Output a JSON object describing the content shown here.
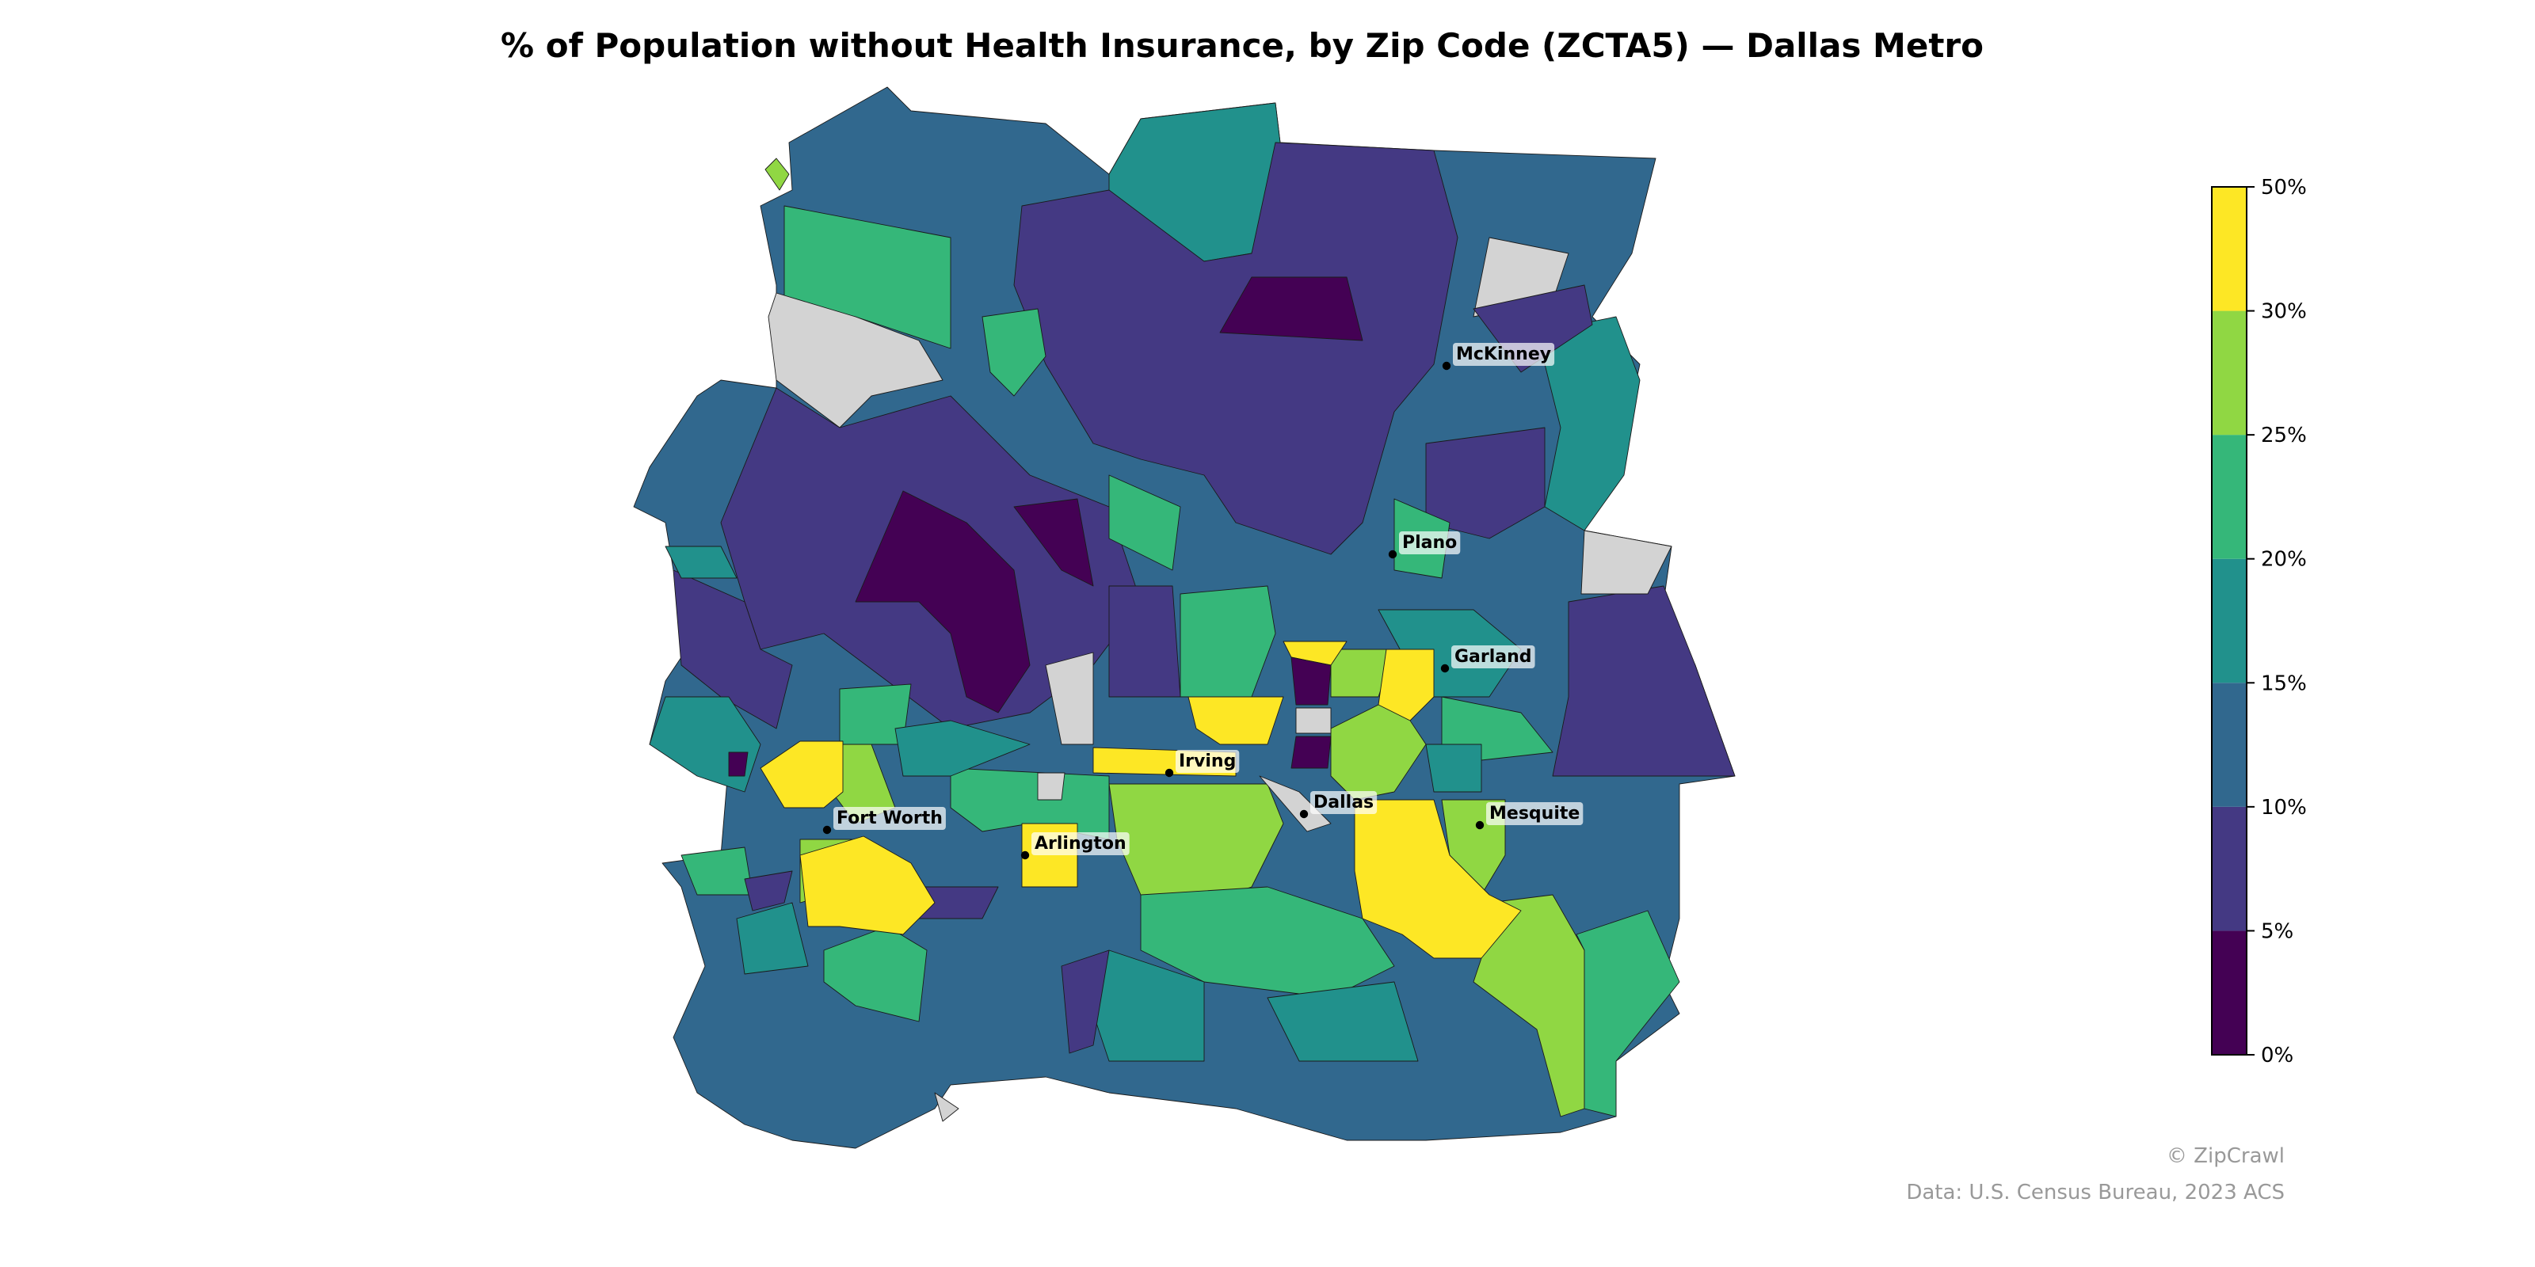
{
  "title": "% of Population without Health Insurance, by Zip Code (ZCTA5) — Dallas Metro",
  "colorbar": {
    "ticks": [
      "0%",
      "5%",
      "10%",
      "15%",
      "20%",
      "25%",
      "30%",
      "50%"
    ],
    "bins": [
      {
        "range": [
          0,
          5
        ],
        "color": "#440154"
      },
      {
        "range": [
          5,
          10
        ],
        "color": "#443983"
      },
      {
        "range": [
          10,
          15
        ],
        "color": "#31688e"
      },
      {
        "range": [
          15,
          20
        ],
        "color": "#21918c"
      },
      {
        "range": [
          20,
          25
        ],
        "color": "#35b779"
      },
      {
        "range": [
          25,
          30
        ],
        "color": "#90d743"
      },
      {
        "range": [
          30,
          50
        ],
        "color": "#fde725"
      }
    ],
    "no_data_color": "#d3d3d3"
  },
  "cities": [
    {
      "name": "McKinney"
    },
    {
      "name": "Plano"
    },
    {
      "name": "Garland"
    },
    {
      "name": "Irving"
    },
    {
      "name": "Dallas"
    },
    {
      "name": "Mesquite"
    },
    {
      "name": "Fort Worth"
    },
    {
      "name": "Arlington"
    }
  ],
  "credits": {
    "copyright": "© ZipCrawl",
    "source": "Data: U.S. Census Bureau, 2023 ACS"
  }
}
